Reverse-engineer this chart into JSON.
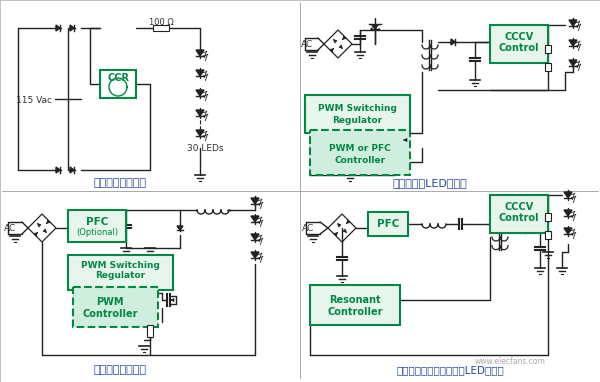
{
  "bg_color": "#f2f2f0",
  "white": "#ffffff",
  "green": "#008844",
  "lgreen_fill": "#e8f5ec",
  "lgreen_dash": "#d0eedd",
  "line_color": "#222222",
  "label_color": "#2244aa",
  "gray_line": "#aaaaaa",
  "labels": {
    "top_left": "非隔离线性驱动器",
    "top_right": "单段反激式LED驱动器",
    "bottom_left": "非隔离降压驱动器",
    "bottom_right": "双段式功率因数校正隔离LED驱动器"
  },
  "watermark": "www.elecfans.com",
  "voltage": "115 Vac",
  "res100": "100 Ω",
  "leds30": "30 LEDs"
}
